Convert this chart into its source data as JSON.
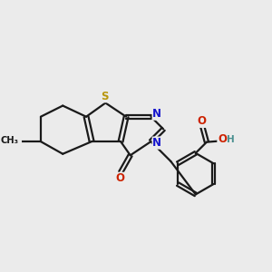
{
  "bg_color": "#ebebeb",
  "bond_color": "#1a1a1a",
  "S_color": "#b8960c",
  "N_color": "#1414cc",
  "O_color": "#cc2200",
  "OH_color": "#4a9090",
  "line_width": 1.6,
  "figsize": [
    3.0,
    3.0
  ],
  "dpi": 100,
  "xlim": [
    0.5,
    9.5
  ],
  "ylim": [
    2.8,
    8.2
  ]
}
